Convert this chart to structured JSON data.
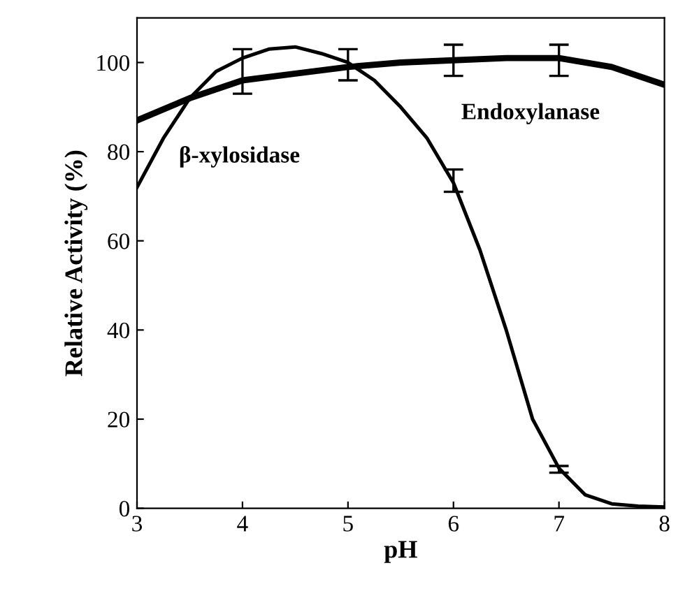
{
  "chart_data": {
    "type": "line",
    "xlabel": "pH",
    "ylabel": "Relative Activity (%)",
    "xlim": [
      3,
      8
    ],
    "ylim": [
      0,
      110
    ],
    "xticks": [
      3,
      4,
      5,
      6,
      7,
      8
    ],
    "yticks": [
      0,
      20,
      40,
      60,
      80,
      100
    ],
    "grid": false,
    "legend": false,
    "marker": "none",
    "line_style": "solid",
    "series": [
      {
        "name": "Endoxylanase",
        "color": "#000000",
        "x": [
          3,
          3.5,
          4,
          4.5,
          5,
          5.5,
          6,
          6.5,
          7,
          7.5,
          8
        ],
        "values": [
          87,
          92,
          96,
          97.5,
          99,
          100,
          100.5,
          101,
          101,
          99,
          95
        ],
        "errors": [
          null,
          null,
          [
            93,
            103
          ],
          null,
          [
            96,
            103
          ],
          null,
          [
            97,
            104
          ],
          null,
          [
            97,
            104
          ],
          null,
          null
        ]
      },
      {
        "name": "β-xylosidase",
        "color": "#000000",
        "x": [
          3,
          3.25,
          3.5,
          3.75,
          4,
          4.25,
          4.5,
          4.75,
          5,
          5.25,
          5.5,
          5.75,
          6,
          6.25,
          6.5,
          6.75,
          7,
          7.25,
          7.5,
          7.75,
          8
        ],
        "values": [
          72,
          83,
          92,
          98,
          101,
          103,
          103.5,
          102,
          100,
          96,
          90,
          83,
          73,
          58,
          40,
          20,
          9,
          3,
          1,
          0.5,
          0.3
        ],
        "errors": [
          null,
          null,
          null,
          null,
          null,
          null,
          null,
          null,
          null,
          null,
          null,
          null,
          [
            71,
            76
          ],
          null,
          null,
          null,
          [
            8,
            9.5
          ],
          null,
          null,
          null,
          null
        ]
      }
    ]
  }
}
